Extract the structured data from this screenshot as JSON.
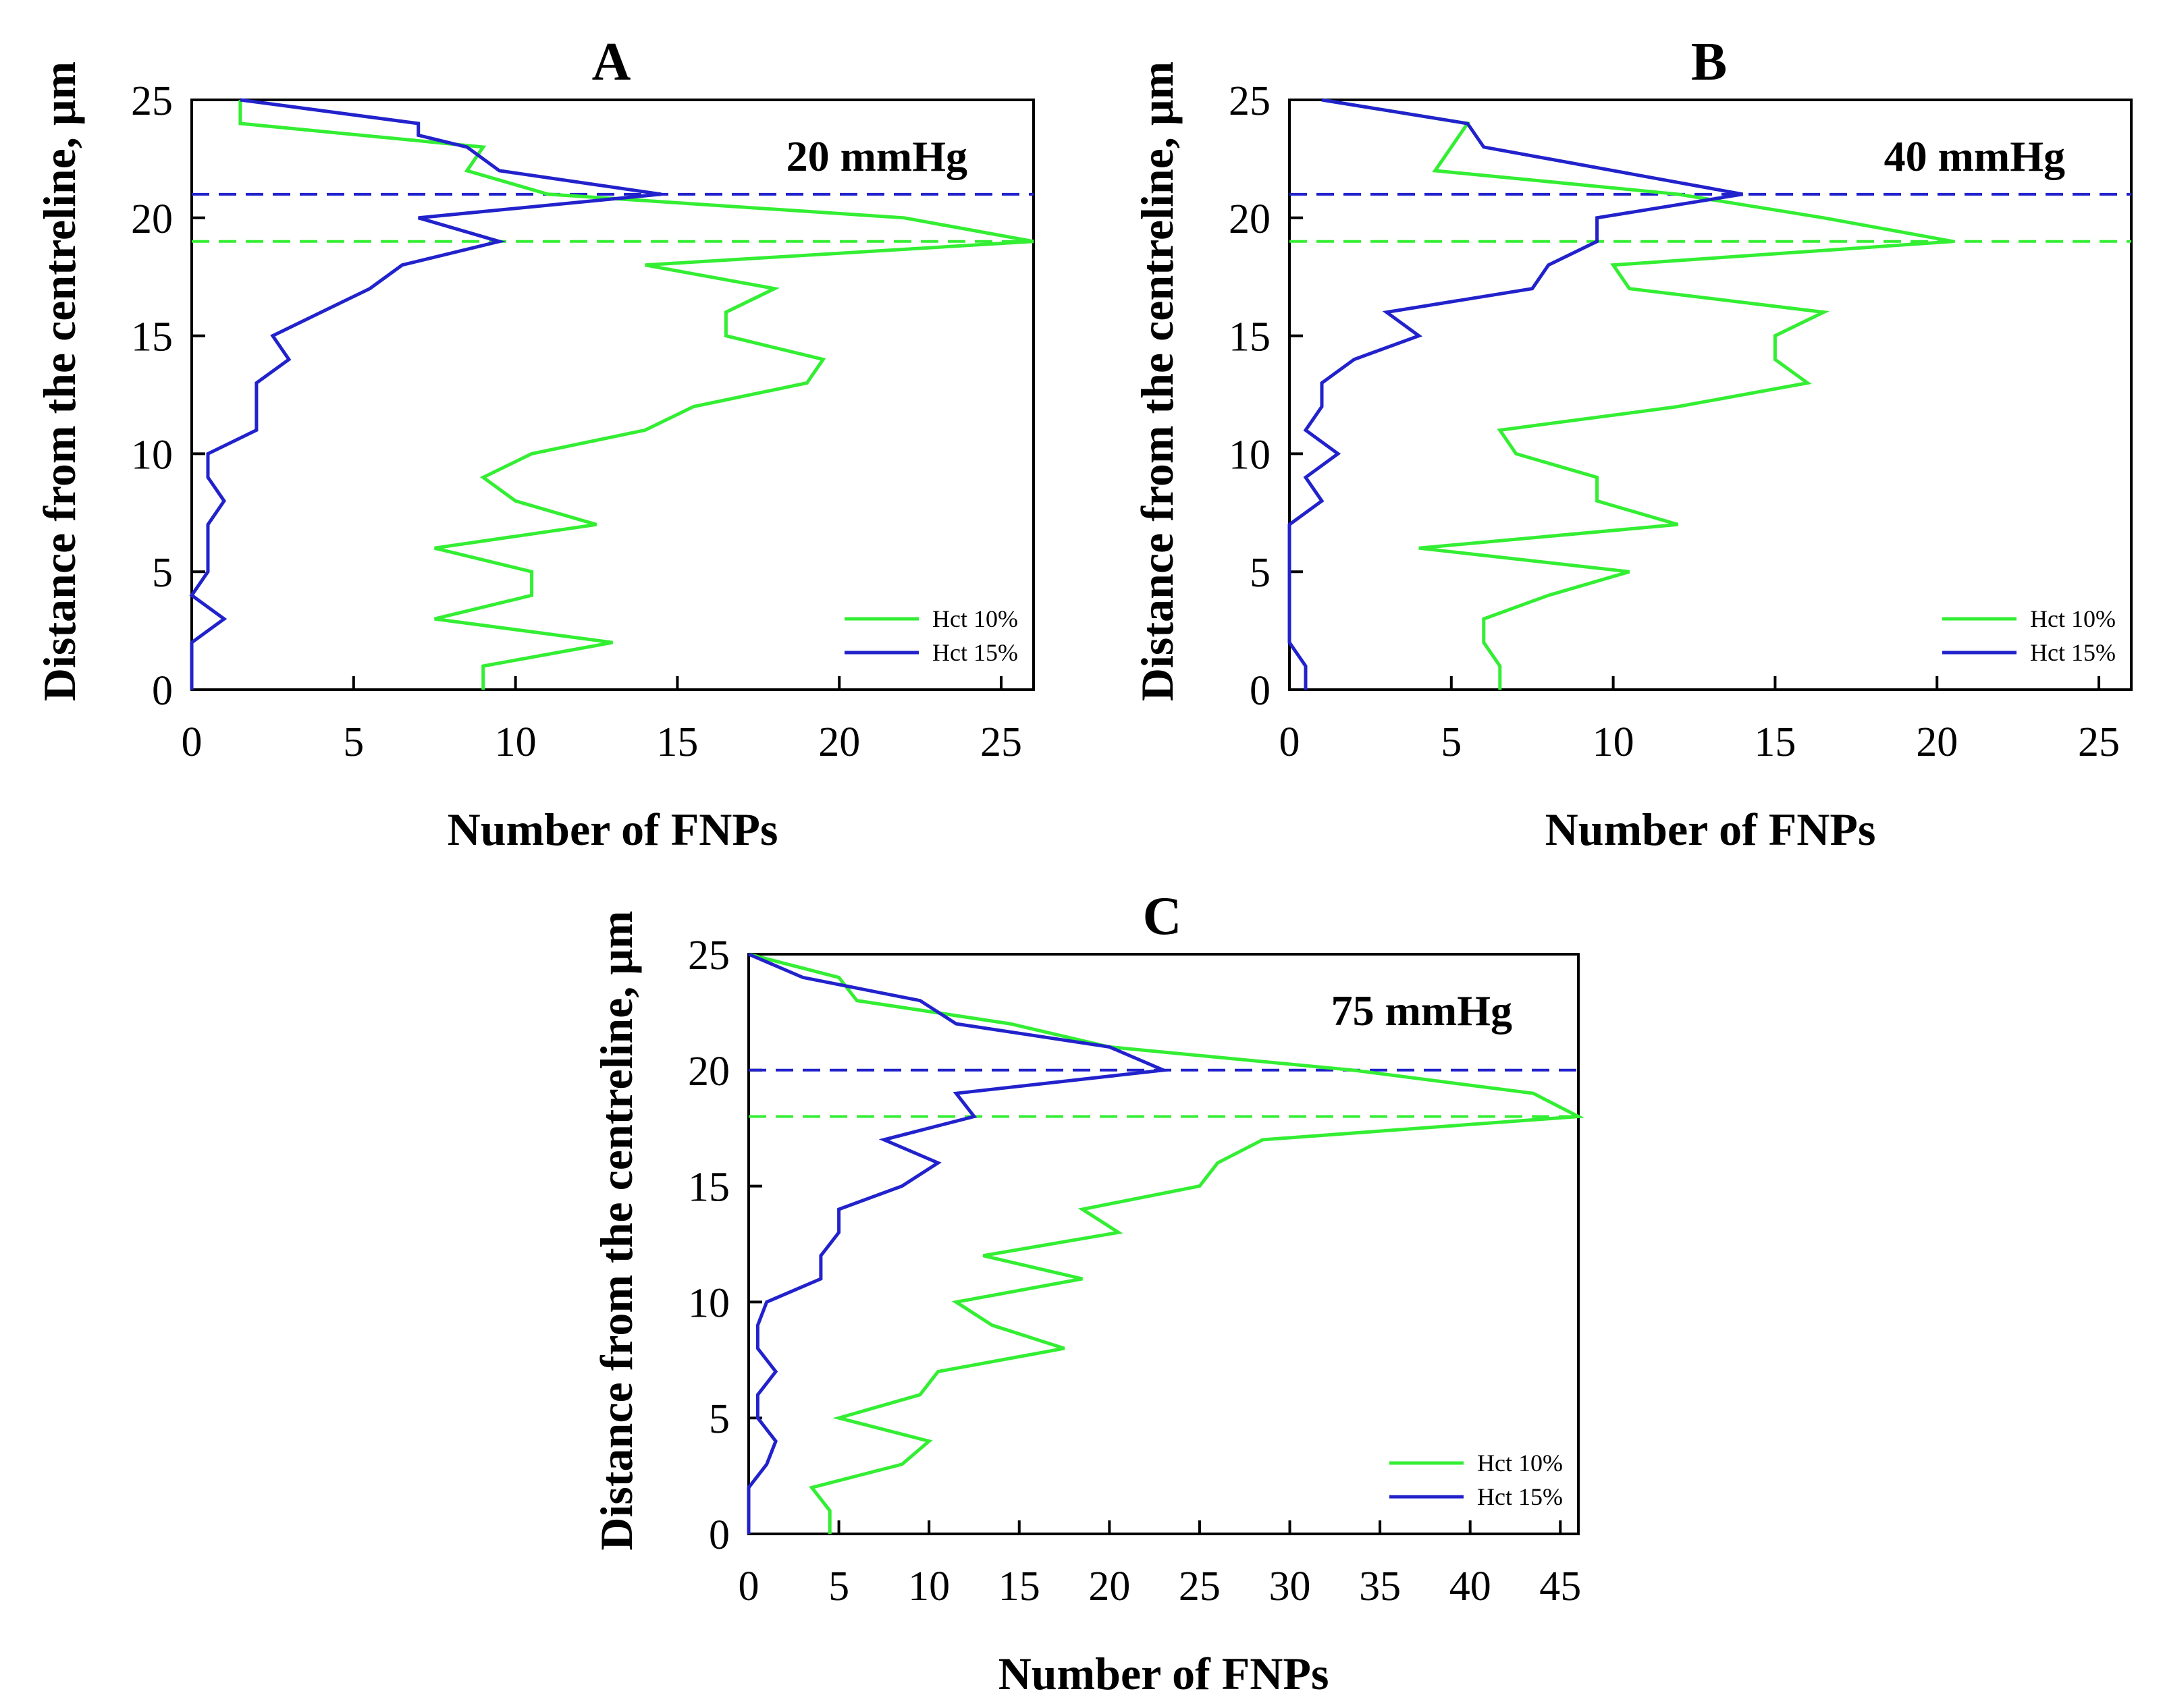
{
  "colors": {
    "green": "#33ee33",
    "blue": "#2222cc",
    "axis": "#000000",
    "background": "#ffffff"
  },
  "chart_data": [
    {
      "type": "line",
      "panel_label": "A",
      "annotation": "20 mmHg",
      "xlabel": "Number of FNPs",
      "ylabel": "Distance from the centreline, μm",
      "xlim": [
        0,
        26
      ],
      "ylim": [
        0,
        25
      ],
      "xticks": [
        0,
        5,
        10,
        15,
        20,
        25
      ],
      "yticks": [
        0,
        5,
        10,
        15,
        20,
        25
      ],
      "legend_position": "bottom-right",
      "series": [
        {
          "name": "Hct 10%",
          "color": "#33ee33",
          "x": [
            9,
            9,
            13,
            7.5,
            10.5,
            10.5,
            7.5,
            12.5,
            10,
            9,
            10.5,
            14,
            15.5,
            19,
            19.5,
            16.5,
            16.5,
            18,
            14,
            26,
            22,
            11,
            8.5,
            9,
            1.5,
            1.5
          ],
          "y": [
            0,
            1,
            2,
            3,
            4,
            5,
            6,
            7,
            8,
            9,
            10,
            11,
            12,
            13,
            14,
            15,
            16,
            17,
            18,
            19,
            20,
            21,
            22,
            23,
            24,
            25
          ]
        },
        {
          "name": "Hct 15%",
          "color": "#2222cc",
          "x": [
            0,
            0,
            0,
            1,
            0,
            0.5,
            0.5,
            0.5,
            1,
            0.5,
            0.5,
            2,
            2,
            2,
            3,
            2.5,
            4,
            5.5,
            6.5,
            9.5,
            7,
            14.5,
            9.5,
            8.5,
            7,
            7,
            1.5
          ],
          "y": [
            0,
            1,
            2,
            3,
            4,
            5,
            6,
            7,
            8,
            9,
            10,
            11,
            12,
            13,
            14,
            15,
            16,
            17,
            18,
            19,
            20,
            21,
            22,
            23,
            23.5,
            24,
            25
          ]
        }
      ],
      "reference_lines": [
        {
          "y": 21,
          "color": "#2222cc"
        },
        {
          "y": 19,
          "color": "#33ee33"
        }
      ]
    },
    {
      "type": "line",
      "panel_label": "B",
      "annotation": "40 mmHg",
      "xlabel": "Number of FNPs",
      "ylabel": "Distance from the centreline, μm",
      "xlim": [
        0,
        26
      ],
      "ylim": [
        0,
        25
      ],
      "xticks": [
        0,
        5,
        10,
        15,
        20,
        25
      ],
      "yticks": [
        0,
        5,
        10,
        15,
        20,
        25
      ],
      "legend_position": "bottom-right",
      "series": [
        {
          "name": "Hct 10%",
          "color": "#33ee33",
          "x": [
            6.5,
            6.5,
            6,
            6,
            8,
            10.5,
            4,
            12,
            9.5,
            9.5,
            7,
            6.5,
            12,
            16,
            15,
            15,
            16.5,
            10.5,
            10,
            20.5,
            16.5,
            12,
            4.5,
            5,
            5.5,
            1
          ],
          "y": [
            0,
            1,
            2,
            3,
            4,
            5,
            6,
            7,
            8,
            9,
            10,
            11,
            12,
            13,
            14,
            15,
            16,
            17,
            18,
            19,
            20,
            21,
            22,
            23,
            24,
            25
          ]
        },
        {
          "name": "Hct 15%",
          "color": "#2222cc",
          "x": [
            0.5,
            0.5,
            0,
            0,
            0,
            0,
            0,
            1,
            0.5,
            1.5,
            0.5,
            1,
            1,
            2,
            4,
            3,
            7.5,
            8,
            9.5,
            9.5,
            14,
            6,
            5.5,
            1
          ],
          "y": [
            0,
            1,
            2,
            4,
            5,
            6,
            7,
            8,
            9,
            10,
            11,
            12,
            13,
            14,
            15,
            16,
            17,
            18,
            19,
            20,
            21,
            23,
            24,
            25
          ]
        }
      ],
      "reference_lines": [
        {
          "y": 21,
          "color": "#2222cc"
        },
        {
          "y": 19,
          "color": "#33ee33"
        }
      ]
    },
    {
      "type": "line",
      "panel_label": "C",
      "annotation": "75 mmHg",
      "xlabel": "Number of FNPs",
      "ylabel": "Distance from the centreline, μm",
      "xlim": [
        0,
        46
      ],
      "ylim": [
        0,
        25
      ],
      "xticks": [
        0,
        5,
        10,
        15,
        20,
        25,
        30,
        35,
        40,
        45
      ],
      "yticks": [
        0,
        5,
        10,
        15,
        20,
        25
      ],
      "legend_position": "bottom-right",
      "series": [
        {
          "name": "Hct 10%",
          "color": "#33ee33",
          "x": [
            4.5,
            4.5,
            3.5,
            8.5,
            10,
            5,
            9.5,
            10.5,
            17.5,
            13.5,
            11.5,
            18.5,
            13,
            20.5,
            18.5,
            25,
            26,
            28.5,
            46,
            43.5,
            33.5,
            20,
            14.5,
            6,
            5,
            0
          ],
          "y": [
            0,
            1,
            2,
            3,
            4,
            5,
            6,
            7,
            8,
            9,
            10,
            11,
            12,
            13,
            14,
            15,
            16,
            17,
            18,
            19,
            20,
            21,
            22,
            23,
            24,
            25
          ]
        },
        {
          "name": "Hct 15%",
          "color": "#2222cc",
          "x": [
            0,
            0,
            0,
            1,
            1.5,
            0.5,
            0.5,
            1.5,
            0.5,
            0.5,
            1,
            4,
            4,
            5,
            5,
            8.5,
            10.5,
            7.5,
            12.5,
            11.5,
            23,
            20,
            11.5,
            9.5,
            3,
            0
          ],
          "y": [
            0,
            1,
            2,
            3,
            4,
            5,
            6,
            7,
            8,
            9,
            10,
            11,
            12,
            13,
            14,
            15,
            16,
            17,
            18,
            19,
            20,
            21,
            22,
            23,
            24,
            25
          ]
        }
      ],
      "reference_lines": [
        {
          "y": 20,
          "color": "#2222cc"
        },
        {
          "y": 18,
          "color": "#33ee33"
        }
      ]
    }
  ]
}
